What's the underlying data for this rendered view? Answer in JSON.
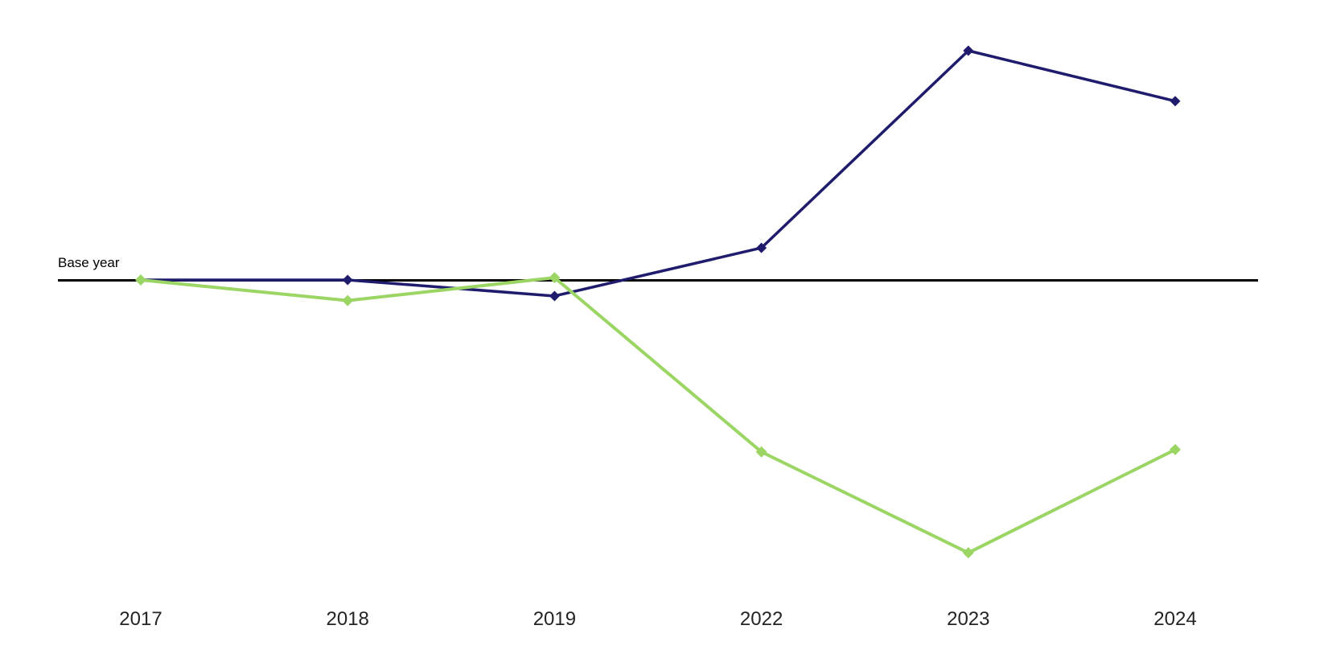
{
  "chart_data": {
    "type": "line",
    "title": "",
    "xlabel": "",
    "ylabel": "",
    "categories": [
      "2017",
      "2018",
      "2019",
      "2022",
      "2023",
      "2024"
    ],
    "series": [
      {
        "name": "dark-blue-series",
        "color": "#1f1b6d",
        "marker": "diamond",
        "values": [
          0,
          0,
          -7,
          14,
          100,
          78
        ]
      },
      {
        "name": "light-green-series",
        "color": "#9bd564",
        "marker": "diamond",
        "values": [
          0,
          -9,
          1,
          -75,
          -119,
          -74
        ]
      }
    ],
    "baseline": {
      "label": "Base year",
      "value": 0,
      "color": "#000000"
    },
    "axis_label_color": "#252423",
    "y_axis_visible": false,
    "gridlines": false,
    "legend_position": "none",
    "ylim_estimate": [
      -125,
      110
    ],
    "note": "No y-axis ticks shown; series values are estimated index deviations from the base-year line, normalized so the dark-blue 2023 peak = 100."
  }
}
